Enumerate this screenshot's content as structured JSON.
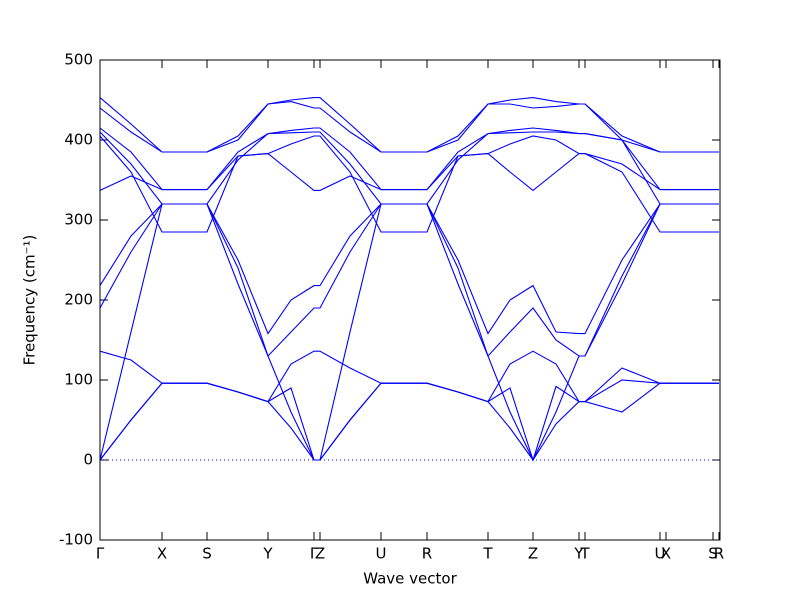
{
  "chart_data": {
    "type": "line",
    "x_label": "Wave vector",
    "y_label": "Frequency (cm⁻¹)",
    "xlim": [
      0,
      6.2
    ],
    "ylim": [
      -100,
      500
    ],
    "yticks": [
      -100,
      0,
      100,
      200,
      300,
      400,
      500
    ],
    "xticks": [
      {
        "value": 0,
        "label": "Γ"
      },
      {
        "value": 0.62,
        "label": "X"
      },
      {
        "value": 1.07,
        "label": "S"
      },
      {
        "value": 1.68,
        "label": "Y"
      },
      {
        "value": 2.14,
        "label": "Γ"
      },
      {
        "value": 2.2,
        "label": "Z"
      },
      {
        "value": 2.81,
        "label": "U"
      },
      {
        "value": 3.27,
        "label": "R"
      },
      {
        "value": 3.88,
        "label": "T"
      },
      {
        "value": 4.33,
        "label": "Z"
      },
      {
        "value": 4.79,
        "label": "Y"
      },
      {
        "value": 4.85,
        "label": "T"
      },
      {
        "value": 5.6,
        "label": "U"
      },
      {
        "value": 5.66,
        "label": "X"
      },
      {
        "value": 6.13,
        "label": "S"
      },
      {
        "value": 6.19,
        "label": "R"
      }
    ],
    "reference_line": {
      "y": 0,
      "color": "#0000ff",
      "style": "dotted"
    },
    "x": [
      0,
      0.31,
      0.62,
      1.07,
      1.38,
      1.68,
      1.91,
      2.14,
      2.2,
      2.5,
      2.81,
      3.27,
      3.58,
      3.88,
      4.1,
      4.33,
      4.56,
      4.79,
      4.85,
      5.22,
      5.6,
      5.66,
      6.13,
      6.19
    ],
    "series": [
      {
        "color": "#0000ff",
        "values": [
          0,
          50,
          96,
          96,
          85,
          73,
          40,
          0,
          0,
          50,
          96,
          96,
          85,
          73,
          40,
          0,
          45,
          73,
          73,
          60,
          96,
          96,
          96,
          96
        ]
      },
      {
        "color": "#0000ff",
        "values": [
          0,
          50,
          96,
          96,
          85,
          73,
          90,
          0,
          0,
          50,
          96,
          96,
          85,
          73,
          90,
          0,
          92,
          73,
          73,
          115,
          96,
          96,
          96,
          96
        ]
      },
      {
        "color": "#0000ff",
        "values": [
          136,
          125,
          96,
          96,
          85,
          73,
          120,
          136,
          136,
          115,
          96,
          96,
          85,
          73,
          120,
          136,
          120,
          73,
          73,
          100,
          96,
          96,
          96,
          96
        ]
      },
      {
        "color": "#0000ff",
        "values": [
          0,
          160,
          320,
          320,
          220,
          130,
          60,
          0,
          0,
          160,
          320,
          320,
          220,
          130,
          60,
          0,
          60,
          130,
          130,
          220,
          320,
          320,
          320,
          320
        ]
      },
      {
        "color": "#0000ff",
        "values": [
          190,
          260,
          320,
          320,
          240,
          130,
          160,
          190,
          190,
          260,
          320,
          320,
          240,
          130,
          160,
          190,
          150,
          130,
          130,
          230,
          320,
          320,
          320,
          320
        ]
      },
      {
        "color": "#0000ff",
        "values": [
          218,
          280,
          320,
          320,
          250,
          158,
          200,
          218,
          218,
          280,
          320,
          320,
          250,
          158,
          200,
          218,
          160,
          158,
          158,
          250,
          320,
          320,
          320,
          320
        ]
      },
      {
        "color": "#0000ff",
        "values": [
          337,
          355,
          338,
          338,
          380,
          383,
          360,
          337,
          337,
          355,
          338,
          338,
          380,
          383,
          360,
          337,
          360,
          383,
          383,
          370,
          338,
          338,
          338,
          338
        ]
      },
      {
        "color": "#0000ff",
        "values": [
          405,
          360,
          285,
          285,
          380,
          383,
          395,
          405,
          405,
          360,
          285,
          285,
          380,
          383,
          395,
          405,
          400,
          383,
          383,
          360,
          285,
          285,
          285,
          285
        ]
      },
      {
        "color": "#0000ff",
        "values": [
          410,
          370,
          320,
          320,
          375,
          408,
          409,
          410,
          410,
          370,
          320,
          320,
          375,
          408,
          409,
          410,
          410,
          408,
          408,
          400,
          320,
          320,
          320,
          320
        ]
      },
      {
        "color": "#0000ff",
        "values": [
          415,
          385,
          338,
          338,
          385,
          408,
          412,
          415,
          415,
          385,
          338,
          338,
          385,
          408,
          412,
          415,
          412,
          408,
          408,
          400,
          338,
          338,
          338,
          338
        ]
      },
      {
        "color": "#0000ff",
        "values": [
          440,
          410,
          385,
          385,
          400,
          445,
          448,
          440,
          440,
          410,
          385,
          385,
          400,
          445,
          445,
          440,
          442,
          445,
          445,
          400,
          385,
          385,
          385,
          385
        ]
      },
      {
        "color": "#0000ff",
        "values": [
          453,
          420,
          385,
          385,
          405,
          445,
          450,
          453,
          453,
          420,
          385,
          385,
          405,
          445,
          450,
          453,
          448,
          445,
          445,
          405,
          385,
          385,
          385,
          385
        ]
      }
    ]
  }
}
